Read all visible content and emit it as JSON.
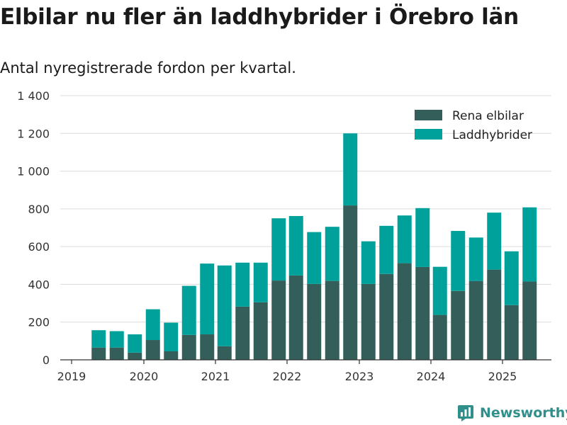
{
  "header": {
    "title": "Elbilar nu fler än laddhybrider i Örebro län",
    "subtitle": "Antal nyregistrerade fordon per kvartal."
  },
  "brand": {
    "name": "Newsworthy",
    "icon": "newsworthy-logo-icon",
    "color": "#2f8f8a"
  },
  "chart_data": {
    "type": "bar",
    "stacked": true,
    "title": "Elbilar nu fler än laddhybrider i Örebro län",
    "subtitle": "Antal nyregistrerade fordon per kvartal.",
    "xlabel": "",
    "ylabel": "",
    "ylim": [
      0,
      1400
    ],
    "yticks": [
      0,
      200,
      400,
      600,
      800,
      1000,
      1200,
      1400
    ],
    "ytick_labels": [
      "0",
      "200",
      "400",
      "600",
      "800",
      "1 000",
      "1 200",
      "1 400"
    ],
    "xticks": [
      "2019",
      "2020",
      "2021",
      "2022",
      "2023",
      "2024",
      "2025"
    ],
    "grid": "horizontal",
    "legend_position": "top-right",
    "categories": [
      "2019-Q2",
      "2019-Q3",
      "2019-Q4",
      "2020-Q1",
      "2020-Q2",
      "2020-Q3",
      "2020-Q4",
      "2021-Q1",
      "2021-Q2",
      "2021-Q3",
      "2021-Q4",
      "2022-Q1",
      "2022-Q2",
      "2022-Q3",
      "2022-Q4",
      "2023-Q1",
      "2023-Q2",
      "2023-Q3",
      "2023-Q4",
      "2024-Q1",
      "2024-Q2",
      "2024-Q3",
      "2024-Q4",
      "2025-Q1",
      "2025-Q2"
    ],
    "series": [
      {
        "name": "Rena elbilar",
        "color": "#335e59",
        "values": [
          65,
          65,
          38,
          105,
          45,
          132,
          135,
          72,
          282,
          305,
          420,
          447,
          402,
          418,
          818,
          402,
          455,
          512,
          492,
          238,
          365,
          418,
          478,
          290,
          415
        ]
      },
      {
        "name": "Laddhybrider",
        "color": "#00a19a",
        "values": [
          92,
          87,
          97,
          163,
          152,
          260,
          375,
          428,
          233,
          210,
          330,
          315,
          275,
          287,
          382,
          226,
          255,
          253,
          312,
          255,
          318,
          230,
          302,
          285,
          393
        ]
      }
    ]
  }
}
